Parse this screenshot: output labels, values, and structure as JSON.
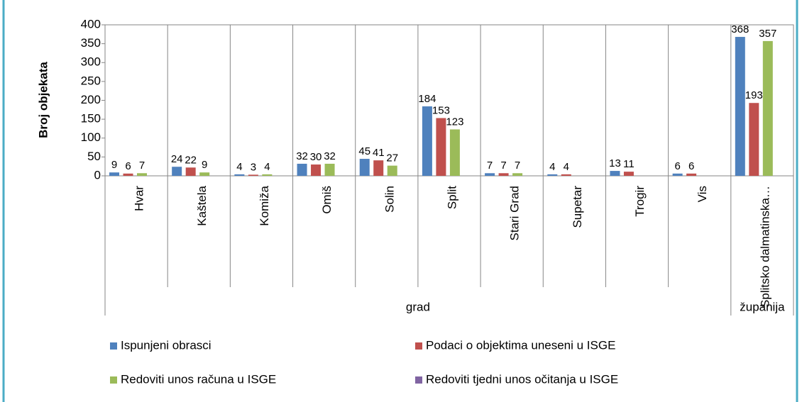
{
  "chart_data": {
    "type": "bar",
    "y_label": "Broj objekata",
    "categories": [
      "Hvar",
      "Kaštela",
      "Komiža",
      "Omiš",
      "Solin",
      "Split",
      "Stari Grad",
      "Supetar",
      "Trogir",
      "Vis",
      "Splitsko dalmatinska…"
    ],
    "groups": [
      {
        "label": "grad",
        "span": 10
      },
      {
        "label": "županija",
        "span": 1
      }
    ],
    "series": [
      {
        "name": "Ispunjeni obrasci",
        "color": "#4f81bd",
        "values": [
          9,
          24,
          4,
          32,
          45,
          184,
          7,
          4,
          13,
          6,
          368
        ]
      },
      {
        "name": "Podaci o objektima uneseni u ISGE",
        "color": "#c0504d",
        "values": [
          6,
          22,
          3,
          30,
          41,
          153,
          7,
          4,
          11,
          6,
          193
        ]
      },
      {
        "name": "Redoviti unos računa u ISGE",
        "color": "#9bbb59",
        "values": [
          7,
          9,
          4,
          32,
          27,
          123,
          7,
          null,
          null,
          null,
          357
        ]
      },
      {
        "name": "Redoviti tjedni unos očitanja u ISGE",
        "color": "#8064a2",
        "values": [
          null,
          null,
          null,
          null,
          null,
          null,
          null,
          null,
          null,
          null,
          null
        ]
      }
    ],
    "ylim": [
      0,
      400
    ],
    "yticks": [
      0,
      50,
      100,
      150,
      200,
      250,
      300,
      350,
      400
    ],
    "legend": "bottom"
  }
}
